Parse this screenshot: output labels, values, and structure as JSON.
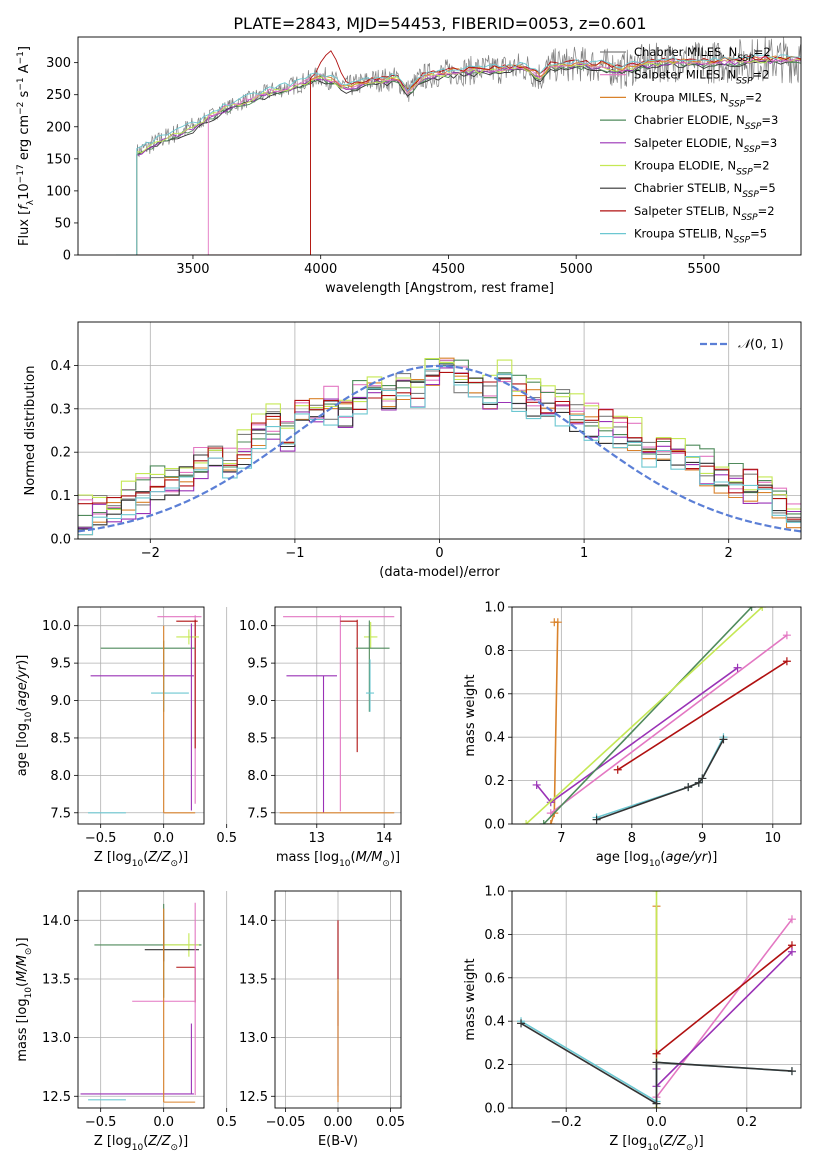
{
  "figure_title": "PLATE=2843, MJD=54453, FIBERID=0053, z=0.601",
  "colors": {
    "chabrier_miles": "#7f7f7f",
    "salpeter_miles": "#e377c2",
    "kroupa_miles": "#d9822b",
    "chabrier_elodie": "#4f8a5b",
    "salpeter_elodie": "#9a32b6",
    "kroupa_elodie": "#c5e854",
    "chabrier_stelib": "#333333",
    "salpeter_stelib": "#b01010",
    "kroupa_stelib": "#6cc7d1",
    "normal_curve": "#5b7fd6",
    "grid": "#b0b0b0"
  },
  "chart_data": [
    {
      "id": "spectrum",
      "type": "line",
      "title": "PLATE=2843, MJD=54453, FIBERID=0053, z=0.601",
      "xlabel": "wavelength [Angstrom, rest frame]",
      "ylabel": "Flux [f_λ 10⁻¹⁷ erg cm⁻² s⁻¹ A⁻¹]",
      "xlim": [
        3050,
        5880
      ],
      "ylim": [
        0,
        340
      ],
      "xticks": [
        "3500",
        "4000",
        "4500",
        "5000",
        "5500"
      ],
      "yticks": [
        "0",
        "50",
        "100",
        "150",
        "200",
        "250",
        "300"
      ],
      "grid": false,
      "legend_position": "top-right",
      "legend": [
        {
          "label": "Chabrier MILES, N_SSP=2",
          "key": "chabrier_miles"
        },
        {
          "label": "Salpeter MILES, N_SSP=2",
          "key": "salpeter_miles"
        },
        {
          "label": "Kroupa MILES, N_SSP=2",
          "key": "kroupa_miles"
        },
        {
          "label": "Chabrier ELODIE, N_SSP=3",
          "key": "chabrier_elodie"
        },
        {
          "label": "Salpeter ELODIE, N_SSP=3",
          "key": "salpeter_elodie"
        },
        {
          "label": "Kroupa ELODIE, N_SSP=2",
          "key": "kroupa_elodie"
        },
        {
          "label": "Chabrier STELIB, N_SSP=5",
          "key": "chabrier_stelib"
        },
        {
          "label": "Salpeter STELIB, N_SSP=2",
          "key": "salpeter_stelib"
        },
        {
          "label": "Kroupa STELIB, N_SSP=5",
          "key": "kroupa_stelib"
        }
      ],
      "model_start_wavelength": {
        "kroupa_stelib": 3280,
        "salpeter_miles": 3560,
        "kroupa_miles": 3960,
        "salpeter_stelib": 3960
      },
      "model_continuum": [
        [
          3280,
          160
        ],
        [
          3400,
          185
        ],
        [
          3500,
          200
        ],
        [
          3600,
          225
        ],
        [
          3700,
          240
        ],
        [
          3800,
          255
        ],
        [
          3900,
          265
        ],
        [
          4000,
          280
        ],
        [
          4100,
          262
        ],
        [
          4200,
          272
        ],
        [
          4300,
          275
        ],
        [
          4340,
          255
        ],
        [
          4400,
          278
        ],
        [
          4500,
          285
        ],
        [
          4600,
          288
        ],
        [
          4700,
          290
        ],
        [
          4800,
          293
        ],
        [
          4860,
          278
        ],
        [
          4900,
          295
        ],
        [
          5000,
          298
        ],
        [
          5100,
          296
        ],
        [
          5180,
          288
        ],
        [
          5250,
          298
        ],
        [
          5400,
          302
        ],
        [
          5500,
          300
        ],
        [
          5700,
          305
        ],
        [
          5880,
          305
        ]
      ],
      "observed_data": {
        "start_wavelength": 3280,
        "end_wavelength": 5880,
        "approx_level": 290,
        "noise": "increases toward red end"
      }
    },
    {
      "id": "residual_histogram",
      "type": "histogram",
      "xlabel": "(data-model)/error",
      "ylabel": "Normed distribution",
      "xlim": [
        -2.5,
        2.5
      ],
      "ylim": [
        0,
        0.5
      ],
      "xticks": [
        "−2",
        "−1",
        "0",
        "1",
        "2"
      ],
      "yticks": [
        "0.0",
        "0.1",
        "0.2",
        "0.3",
        "0.4"
      ],
      "grid": true,
      "legend_position": "top-right",
      "normal_curve_label": "𝒩(0, 1)",
      "bin_range": [
        -2.5,
        2.5
      ],
      "n_bins": 50,
      "series": [
        {
          "key": "chabrier_miles",
          "offset": 0.0
        },
        {
          "key": "salpeter_miles",
          "offset": 0.012
        },
        {
          "key": "kroupa_miles",
          "offset": -0.01
        },
        {
          "key": "chabrier_elodie",
          "offset": 0.015
        },
        {
          "key": "salpeter_elodie",
          "offset": -0.012
        },
        {
          "key": "kroupa_elodie",
          "offset": 0.02
        },
        {
          "key": "chabrier_stelib",
          "offset": -0.005
        },
        {
          "key": "salpeter_stelib",
          "offset": 0.006
        },
        {
          "key": "kroupa_stelib",
          "offset": -0.015
        }
      ],
      "base_values": [
        0.05,
        0.07,
        0.08,
        0.09,
        0.1,
        0.12,
        0.13,
        0.15,
        0.17,
        0.19,
        0.18,
        0.21,
        0.24,
        0.26,
        0.24,
        0.28,
        0.3,
        0.31,
        0.29,
        0.32,
        0.34,
        0.33,
        0.36,
        0.35,
        0.38,
        0.4,
        0.37,
        0.35,
        0.34,
        0.36,
        0.33,
        0.32,
        0.3,
        0.31,
        0.28,
        0.27,
        0.26,
        0.24,
        0.23,
        0.21,
        0.2,
        0.19,
        0.17,
        0.16,
        0.14,
        0.13,
        0.12,
        0.1,
        0.09,
        0.07
      ]
    },
    {
      "id": "age_vs_Z",
      "type": "errorbar",
      "xlabel": "Z [log₁₀(Z/Z☉)]",
      "ylabel": "age  [log₁₀(age/yr)]",
      "xlim": [
        -0.68,
        0.32
      ],
      "ylim": [
        7.35,
        10.25
      ],
      "xticks": [
        "−0.5",
        "0.0",
        "0.5"
      ],
      "yticks": [
        "7.5",
        "8.0",
        "8.5",
        "9.0",
        "9.5",
        "10.0"
      ],
      "grid": true,
      "points": [
        {
          "key": "salpeter_miles",
          "x": 0.25,
          "y": 10.12,
          "xerr": [
            0.3,
            0.05
          ],
          "yerr": [
            2.5,
            0.02
          ]
        },
        {
          "key": "salpeter_stelib",
          "x": 0.25,
          "y": 10.06,
          "xerr": [
            0.15,
            0.02
          ],
          "yerr": [
            1.7,
            0.02
          ]
        },
        {
          "key": "kroupa_elodie",
          "x": 0.2,
          "y": 9.85,
          "xerr": [
            0.1,
            0.08
          ],
          "yerr": [
            0.1,
            0.1
          ]
        },
        {
          "key": "chabrier_elodie",
          "x": 0.0,
          "y": 9.7,
          "xerr": [
            0.5,
            0.25
          ],
          "yerr": [
            0.85,
            0.1
          ]
        },
        {
          "key": "salpeter_elodie",
          "x": 0.22,
          "y": 9.33,
          "xerr": [
            0.8,
            0.02
          ],
          "yerr": [
            1.8,
            0.7
          ]
        },
        {
          "key": "kroupa_stelib",
          "x": 0.0,
          "y": 9.1,
          "xerr": [
            0.1,
            0.2
          ],
          "yerr": [
            0.2,
            0.2
          ]
        },
        {
          "key": "kroupa_stelib",
          "x": -0.3,
          "y": 7.5,
          "xerr": [
            0.3,
            0.0
          ],
          "yerr": [
            0.0,
            0.0
          ]
        },
        {
          "key": "kroupa_miles",
          "x": 0.0,
          "y": 7.5,
          "xerr": [
            0.0,
            0.25
          ],
          "yerr": [
            0.0,
            2.5
          ]
        }
      ]
    },
    {
      "id": "age_vs_mass",
      "type": "errorbar",
      "xlabel": "mass [log₁₀(M/M☉)]",
      "ylabel": "",
      "xlim": [
        12.38,
        14.25
      ],
      "ylim": [
        7.35,
        10.25
      ],
      "xticks": [
        "13",
        "14"
      ],
      "yticks": [
        "7.5",
        "8.0",
        "8.5",
        "9.0",
        "9.5",
        "10.0"
      ],
      "grid": true,
      "points": [
        {
          "key": "salpeter_miles",
          "x": 13.35,
          "y": 10.12,
          "xerr": [
            0.85,
            0.8
          ],
          "yerr": [
            2.6,
            0.02
          ]
        },
        {
          "key": "salpeter_stelib",
          "x": 13.6,
          "y": 10.06,
          "xerr": [
            0.25,
            0.0
          ],
          "yerr": [
            1.75,
            0.02
          ]
        },
        {
          "key": "kroupa_elodie",
          "x": 13.8,
          "y": 9.85,
          "xerr": [
            0.1,
            0.1
          ],
          "yerr": [
            0.15,
            0.2
          ]
        },
        {
          "key": "chabrier_elodie",
          "x": 13.78,
          "y": 9.7,
          "xerr": [
            0.2,
            0.3
          ],
          "yerr": [
            0.85,
            0.37
          ]
        },
        {
          "key": "salpeter_elodie",
          "x": 13.1,
          "y": 9.33,
          "xerr": [
            0.55,
            0.2
          ],
          "yerr": [
            1.83,
            0.0
          ]
        },
        {
          "key": "kroupa_stelib",
          "x": 13.79,
          "y": 9.1,
          "xerr": [
            0.06,
            0.06
          ],
          "yerr": [
            0.25,
            0.45
          ]
        },
        {
          "key": "kroupa_miles",
          "x": 13.35,
          "y": 7.5,
          "xerr": [
            0.9,
            0.8
          ],
          "yerr": [
            0.0,
            0.0
          ]
        }
      ]
    },
    {
      "id": "weight_vs_age",
      "type": "line",
      "xlabel": "age  [log₁₀(age/yr)]",
      "ylabel": "mass weight",
      "xlim": [
        6.3,
        10.4
      ],
      "ylim": [
        0.0,
        1.0
      ],
      "xticks": [
        "7",
        "8",
        "9",
        "10"
      ],
      "yticks": [
        "0.0",
        "0.2",
        "0.4",
        "0.6",
        "0.8",
        "1.0"
      ],
      "grid": true,
      "series": [
        {
          "key": "kroupa_miles",
          "x": [
            6.9,
            6.95,
            6.9,
            6.85
          ],
          "y": [
            0.93,
            0.93,
            0.05,
            0.0
          ]
        },
        {
          "key": "salpeter_miles",
          "x": [
            6.85,
            10.2
          ],
          "y": [
            0.05,
            0.87
          ]
        },
        {
          "key": "salpeter_elodie",
          "x": [
            6.65,
            6.85,
            9.5
          ],
          "y": [
            0.18,
            0.1,
            0.72
          ]
        },
        {
          "key": "salpeter_stelib",
          "x": [
            7.8,
            10.2
          ],
          "y": [
            0.25,
            0.75
          ]
        },
        {
          "key": "chabrier_elodie",
          "x": [
            6.75,
            9.7
          ],
          "y": [
            0.0,
            1.0
          ]
        },
        {
          "key": "kroupa_elodie",
          "x": [
            6.5,
            9.85
          ],
          "y": [
            0.0,
            1.0
          ]
        },
        {
          "key": "kroupa_stelib",
          "x": [
            7.5,
            8.8,
            8.95,
            9.0,
            9.3
          ],
          "y": [
            0.03,
            0.17,
            0.19,
            0.21,
            0.4
          ]
        },
        {
          "key": "chabrier_stelib",
          "x": [
            7.5,
            8.8,
            8.95,
            9.0,
            9.3
          ],
          "y": [
            0.02,
            0.17,
            0.19,
            0.21,
            0.39
          ]
        }
      ]
    },
    {
      "id": "mass_vs_Z",
      "type": "errorbar",
      "xlabel": "Z [log₁₀(Z/Z☉)]",
      "ylabel": "mass [log₁₀(M/M☉)]",
      "xlim": [
        -0.68,
        0.32
      ],
      "ylim": [
        12.4,
        14.25
      ],
      "xticks": [
        "−0.5",
        "0.0",
        "0.5"
      ],
      "yticks": [
        "12.5",
        "13.0",
        "13.5",
        "14.0"
      ],
      "grid": true,
      "points": [
        {
          "key": "chabrier_elodie",
          "x": 0.0,
          "y": 13.79,
          "xerr": [
            0.55,
            0.3
          ],
          "yerr": [
            0.45,
            0.35
          ]
        },
        {
          "key": "kroupa_elodie",
          "x": 0.2,
          "y": 13.79,
          "xerr": [
            0.2,
            0.08
          ],
          "yerr": [
            0.1,
            0.1
          ]
        },
        {
          "key": "chabrier_stelib",
          "x": 0.0,
          "y": 13.75,
          "xerr": [
            0.15,
            0.28
          ],
          "yerr": [
            0.1,
            0.25
          ]
        },
        {
          "key": "salpeter_stelib",
          "x": 0.25,
          "y": 13.6,
          "xerr": [
            0.15,
            0.0
          ],
          "yerr": [
            0.3,
            0.0
          ]
        },
        {
          "key": "salpeter_miles",
          "x": 0.25,
          "y": 13.31,
          "xerr": [
            0.5,
            0.0
          ],
          "yerr": [
            0.8,
            0.84
          ]
        },
        {
          "key": "salpeter_elodie",
          "x": 0.22,
          "y": 12.52,
          "xerr": [
            0.88,
            0.02
          ],
          "yerr": [
            0.0,
            0.6
          ]
        },
        {
          "key": "kroupa_stelib",
          "x": -0.3,
          "y": 12.47,
          "xerr": [
            0.3,
            0.0
          ],
          "yerr": [
            0.0,
            0.0
          ]
        },
        {
          "key": "kroupa_miles",
          "x": 0.0,
          "y": 12.45,
          "xerr": [
            0.0,
            0.25
          ],
          "yerr": [
            0.0,
            1.65
          ]
        }
      ]
    },
    {
      "id": "mass_vs_ebv",
      "type": "errorbar",
      "xlabel": "E(B-V)",
      "ylabel": "",
      "xlim": [
        -0.06,
        0.06
      ],
      "ylim": [
        12.4,
        14.25
      ],
      "xticks": [
        "−0.05",
        "0.00",
        "0.05"
      ],
      "yticks": [
        "12.5",
        "13.0",
        "13.5",
        "14.0"
      ],
      "grid": true,
      "points": [
        {
          "key": "kroupa_stelib",
          "x": 0.0,
          "y": 13.79,
          "xerr": [
            0.0,
            0.0
          ],
          "yerr": [
            1.2,
            0.2
          ]
        },
        {
          "key": "salpeter_stelib",
          "x": 0.0,
          "y": 13.6,
          "xerr": [
            0.0,
            0.0
          ],
          "yerr": [
            0.5,
            0.4
          ]
        },
        {
          "key": "salpeter_elodie",
          "x": 0.0,
          "y": 13.1,
          "xerr": [
            0.0,
            0.0
          ],
          "yerr": [
            0.6,
            0.3
          ]
        },
        {
          "key": "kroupa_miles",
          "x": 0.0,
          "y": 13.0,
          "xerr": [
            0.0,
            0.0
          ],
          "yerr": [
            0.55,
            0.5
          ]
        }
      ]
    },
    {
      "id": "weight_vs_Z",
      "type": "line",
      "xlabel": "Z [log₁₀(Z/Z☉)]",
      "ylabel": "mass weight",
      "xlim": [
        -0.32,
        0.32
      ],
      "ylim": [
        0.0,
        1.0
      ],
      "xticks": [
        "−0.2",
        "0.0",
        "0.2"
      ],
      "yticks": [
        "0.0",
        "0.2",
        "0.4",
        "0.6",
        "0.8",
        "1.0"
      ],
      "grid": true,
      "series": [
        {
          "key": "kroupa_miles",
          "x": [
            0.0,
            0.0
          ],
          "y": [
            0.93,
            0.0
          ]
        },
        {
          "key": "kroupa_elodie",
          "x": [
            0.0,
            0.0
          ],
          "y": [
            1.0,
            0.0
          ]
        },
        {
          "key": "salpeter_miles",
          "x": [
            0.0,
            0.3
          ],
          "y": [
            0.05,
            0.87
          ]
        },
        {
          "key": "salpeter_stelib",
          "x": [
            0.0,
            0.3
          ],
          "y": [
            0.25,
            0.75
          ]
        },
        {
          "key": "salpeter_elodie",
          "x": [
            0.0,
            0.0,
            0.3
          ],
          "y": [
            0.18,
            0.1,
            0.72
          ]
        },
        {
          "key": "kroupa_stelib",
          "x": [
            -0.3,
            0.0,
            0.0,
            0.3
          ],
          "y": [
            0.4,
            0.03,
            0.21,
            0.17
          ]
        },
        {
          "key": "chabrier_stelib",
          "x": [
            -0.3,
            0.0,
            0.0,
            0.3
          ],
          "y": [
            0.39,
            0.02,
            0.21,
            0.17
          ]
        }
      ]
    }
  ]
}
